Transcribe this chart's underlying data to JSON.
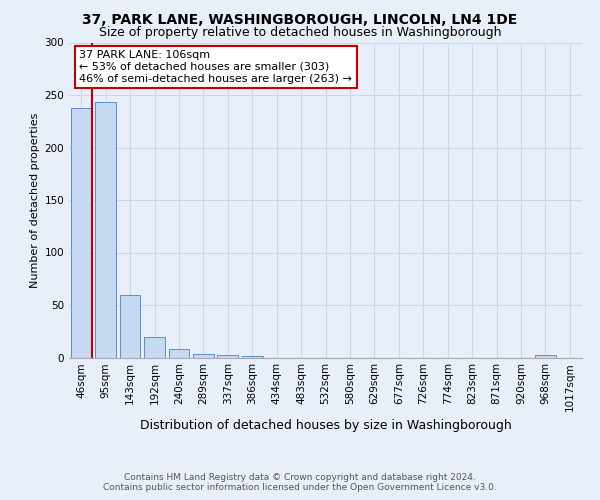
{
  "title1": "37, PARK LANE, WASHINGBOROUGH, LINCOLN, LN4 1DE",
  "title2": "Size of property relative to detached houses in Washingborough",
  "xlabel": "Distribution of detached houses by size in Washingborough",
  "ylabel": "Number of detached properties",
  "annotation_line1": "37 PARK LANE: 106sqm",
  "annotation_line2": "← 53% of detached houses are smaller (303)",
  "annotation_line3": "46% of semi-detached houses are larger (263) →",
  "footer1": "Contains HM Land Registry data © Crown copyright and database right 2024.",
  "footer2": "Contains public sector information licensed under the Open Government Licence v3.0.",
  "bar_labels": [
    "46sqm",
    "95sqm",
    "143sqm",
    "192sqm",
    "240sqm",
    "289sqm",
    "337sqm",
    "386sqm",
    "434sqm",
    "483sqm",
    "532sqm",
    "580sqm",
    "629sqm",
    "677sqm",
    "726sqm",
    "774sqm",
    "823sqm",
    "871sqm",
    "920sqm",
    "968sqm",
    "1017sqm"
  ],
  "bar_values": [
    238,
    243,
    60,
    20,
    8,
    3,
    2,
    1,
    0,
    0,
    0,
    0,
    0,
    0,
    0,
    0,
    0,
    0,
    0,
    2,
    0
  ],
  "bar_color": "#c6d9f0",
  "bar_edge_color": "#5b8fd4",
  "vline_color": "#c00000",
  "annotation_box_facecolor": "#ffffff",
  "annotation_box_edgecolor": "#c00000",
  "grid_color": "#c8d8ee",
  "background_color": "#e8eff8",
  "ylim": [
    0,
    300
  ],
  "yticks": [
    0,
    50,
    100,
    150,
    200,
    250,
    300
  ],
  "title1_fontsize": 10,
  "title2_fontsize": 9,
  "ylabel_fontsize": 8,
  "xlabel_fontsize": 9,
  "tick_fontsize": 7.5,
  "ann_fontsize": 8,
  "footer_fontsize": 6.5
}
